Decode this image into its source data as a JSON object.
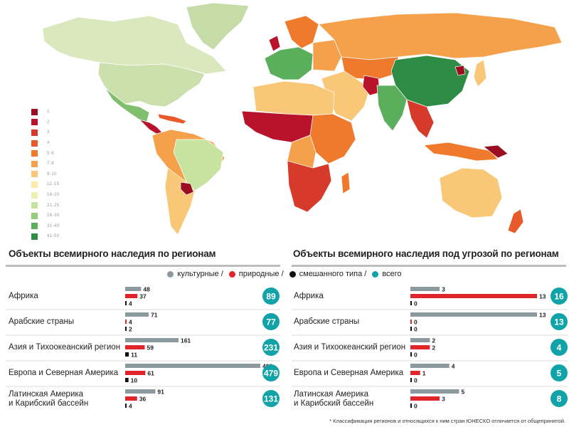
{
  "map_legend": [
    {
      "label": "1",
      "color": "#9b0e20"
    },
    {
      "label": "2",
      "color": "#b8132a"
    },
    {
      "label": "3",
      "color": "#d63a2a"
    },
    {
      "label": "4",
      "color": "#e85a2c"
    },
    {
      "label": "5-6",
      "color": "#f07a2c"
    },
    {
      "label": "7-8",
      "color": "#f5a04a"
    },
    {
      "label": "9-10",
      "color": "#f8c878"
    },
    {
      "label": "11-15",
      "color": "#fae9a8"
    },
    {
      "label": "16-20",
      "color": "#eef0b0"
    },
    {
      "label": "21-25",
      "color": "#c8e3a0"
    },
    {
      "label": "26-30",
      "color": "#95cc7c"
    },
    {
      "label": "31-40",
      "color": "#5aae5c"
    },
    {
      "label": "41-50",
      "color": "#2e8c44"
    }
  ],
  "legend": {
    "cultural": "культурные /",
    "natural": "природные /",
    "mixed": "смешанного типа /",
    "total": "всего",
    "colors": {
      "cultural": "#8c9aa0",
      "natural": "#e0262a",
      "mixed": "#111111",
      "total": "#11a3a7"
    }
  },
  "chart_data": [
    {
      "type": "bar",
      "title": "Объекты всемирного наследия по регионам",
      "categories": [
        "Африка",
        "Арабские страны",
        "Азия и Тихоокеанский регион",
        "Европа и Северная Америка",
        "Латинская Америка\nи Карибский бассейн"
      ],
      "series": [
        {
          "name": "культурные",
          "values": [
            48,
            71,
            161,
            408,
            91
          ]
        },
        {
          "name": "природные",
          "values": [
            37,
            4,
            59,
            61,
            36
          ]
        },
        {
          "name": "смешанного типа",
          "values": [
            4,
            2,
            11,
            10,
            4
          ]
        }
      ],
      "totals": [
        89,
        77,
        231,
        479,
        131
      ]
    },
    {
      "type": "bar",
      "title": "Объекты всемирного наследия под угрозой по регионам",
      "categories": [
        "Африка",
        "Арабские страны",
        "Азия и Тихоокеанский регион",
        "Европа и Северная Америка",
        "Латинская Америка\nи Карибский бассейн"
      ],
      "series": [
        {
          "name": "культурные",
          "values": [
            3,
            13,
            2,
            4,
            5
          ]
        },
        {
          "name": "природные",
          "values": [
            13,
            0,
            2,
            1,
            3
          ]
        },
        {
          "name": "смешанного типа",
          "values": [
            0,
            0,
            0,
            0,
            0
          ]
        }
      ],
      "totals": [
        16,
        13,
        4,
        5,
        8
      ]
    }
  ],
  "footnote": "* Классификация регионов и относящихся к ним стран ЮНЕСКО отличается от общепринятой."
}
